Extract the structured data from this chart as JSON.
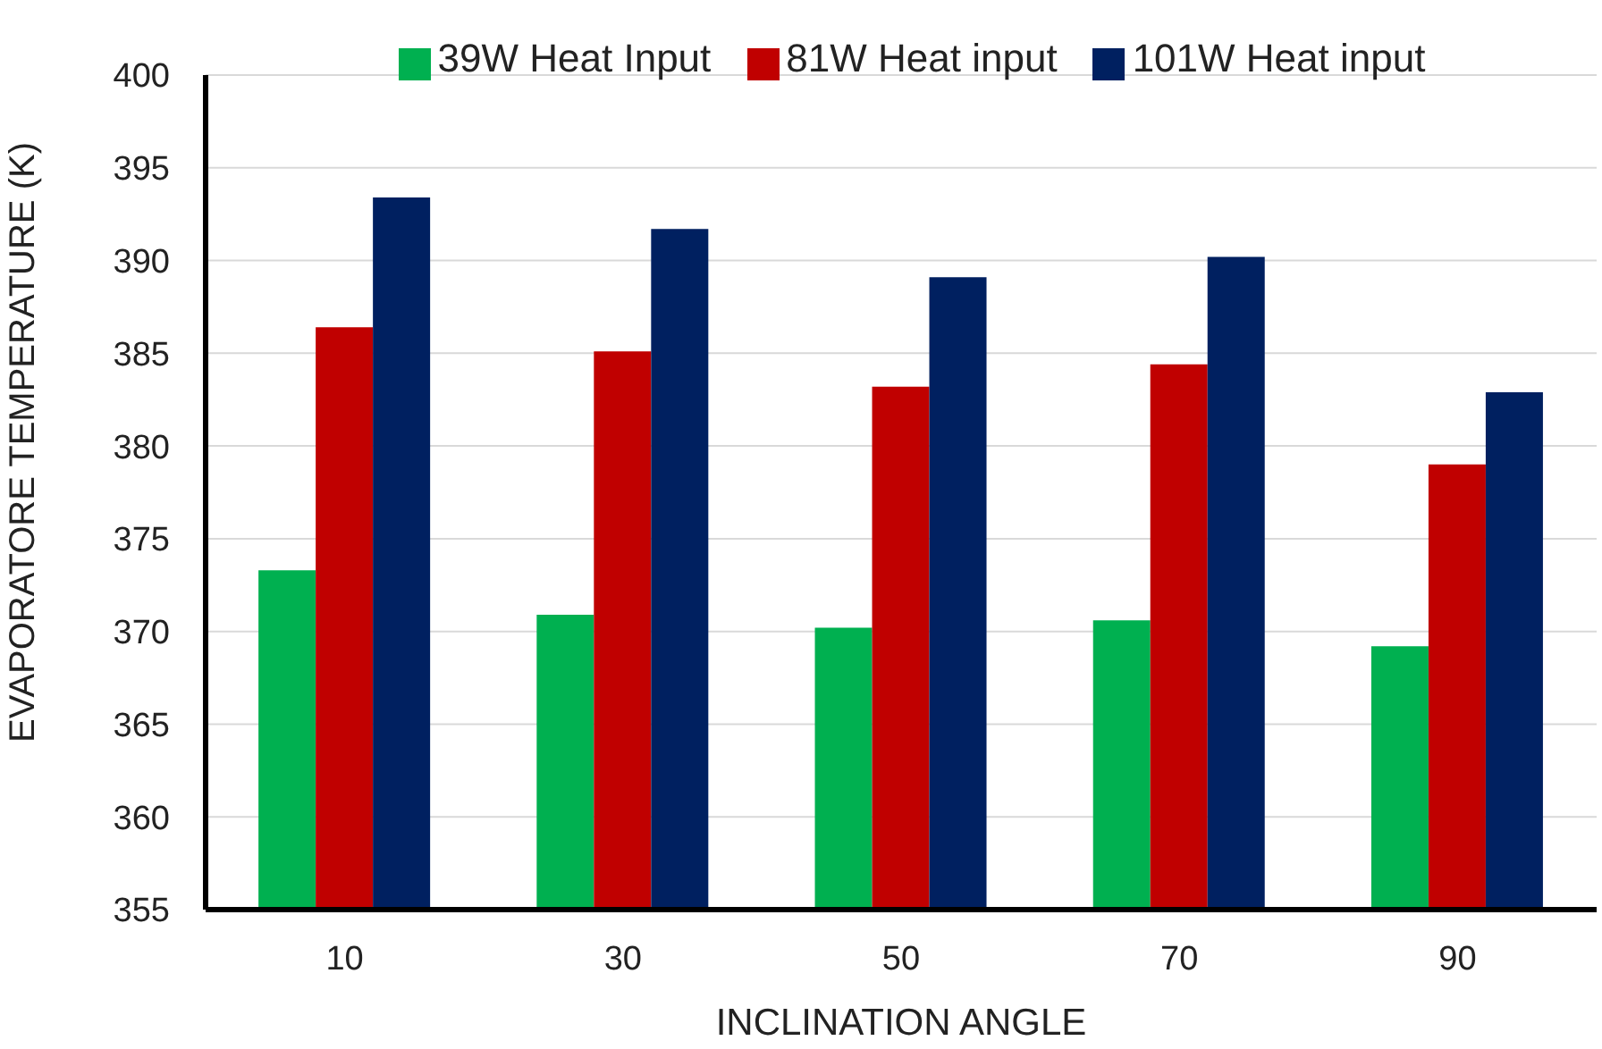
{
  "chart_data": {
    "type": "bar",
    "xlabel": "INCLINATION ANGLE",
    "ylabel": "EVAPORATORE TEMPERATURE (K)",
    "categories": [
      "10",
      "30",
      "50",
      "70",
      "90"
    ],
    "series": [
      {
        "name": "39W Heat Input",
        "color": "#00b050",
        "values": [
          373.3,
          370.9,
          370.2,
          370.6,
          369.2
        ]
      },
      {
        "name": "81W Heat input",
        "color": "#c00000",
        "values": [
          386.4,
          385.1,
          383.2,
          384.4,
          379.0
        ]
      },
      {
        "name": "101W Heat input",
        "color": "#002060",
        "values": [
          393.4,
          391.7,
          389.1,
          390.2,
          382.9
        ]
      }
    ],
    "ylim": [
      355,
      400
    ],
    "yticks": [
      355,
      360,
      365,
      370,
      375,
      380,
      385,
      390,
      395,
      400
    ],
    "grid": "y",
    "legend": "top"
  }
}
